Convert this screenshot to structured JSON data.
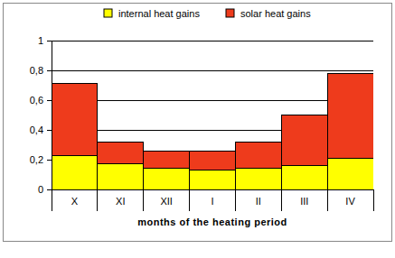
{
  "chart_data": {
    "type": "bar",
    "stacked": true,
    "categories": [
      "X",
      "XI",
      "XII",
      "I",
      "II",
      "III",
      "IV"
    ],
    "series": [
      {
        "name": "internal heat gains",
        "color": "#ffff00",
        "values": [
          0.23,
          0.17,
          0.14,
          0.13,
          0.14,
          0.16,
          0.21
        ]
      },
      {
        "name": "solar heat gains",
        "color": "#ee3b1c",
        "values": [
          0.48,
          0.15,
          0.12,
          0.13,
          0.18,
          0.34,
          0.57
        ]
      }
    ],
    "x_label": "months of the heating period",
    "ylim": [
      0,
      1
    ],
    "yticks": [
      0,
      {
        "value": 0.2,
        "label": "0,2"
      },
      {
        "value": 0.4,
        "label": "0,4"
      },
      {
        "value": 0.6,
        "label": "0,6"
      },
      {
        "value": 0.8,
        "label": "0,8"
      },
      1
    ],
    "grid": true,
    "legend": "top"
  }
}
